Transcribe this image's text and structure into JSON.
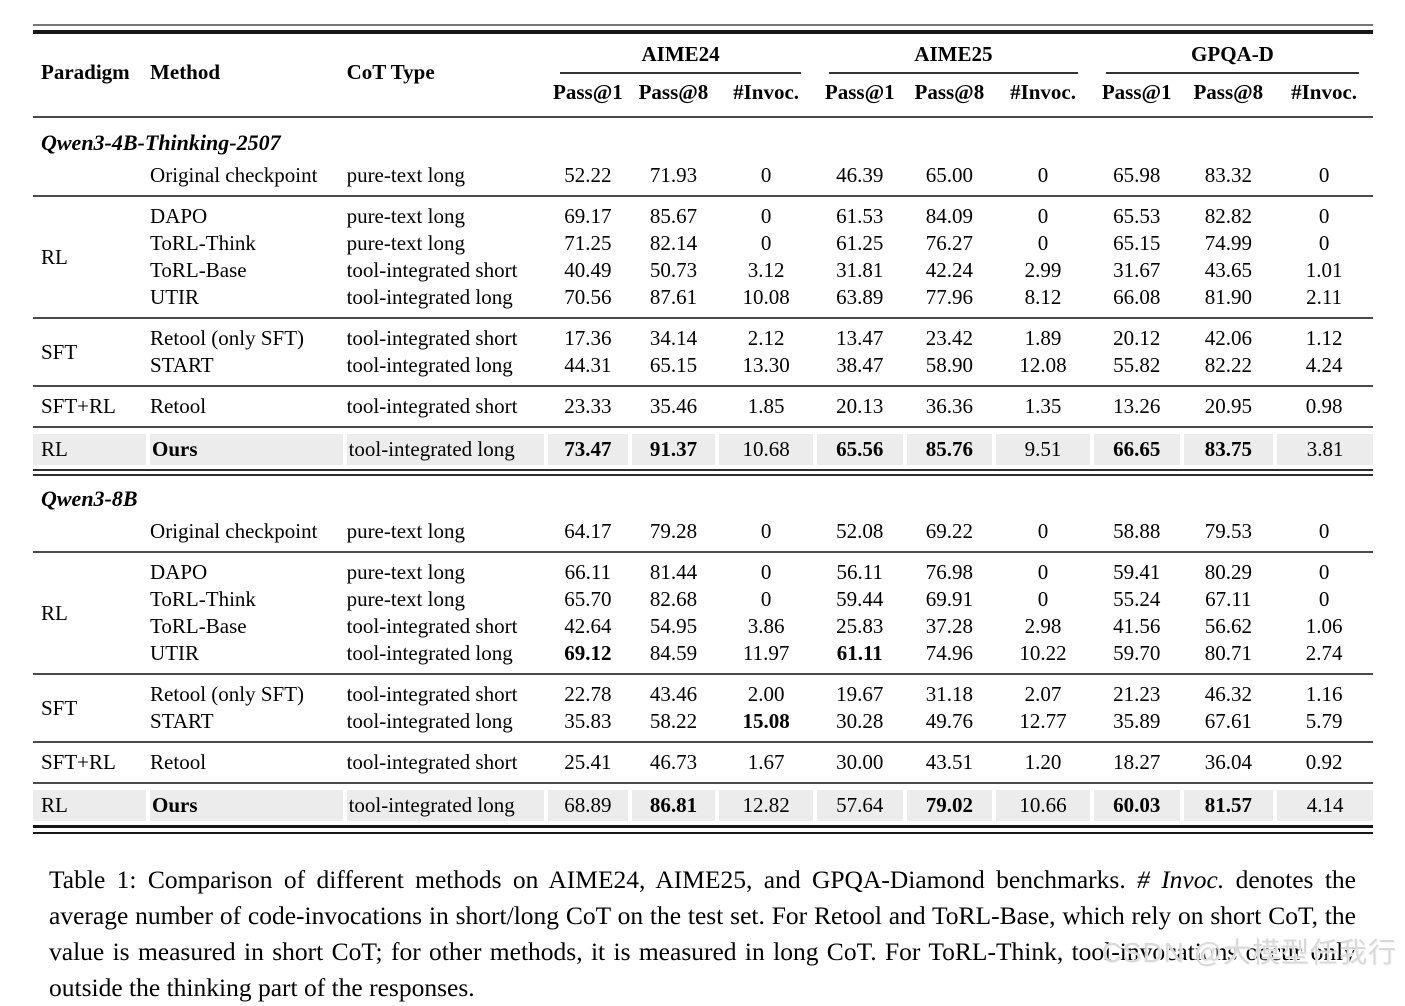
{
  "table": {
    "col_headers": [
      "Paradigm",
      "Method",
      "CoT Type"
    ],
    "groups": [
      "AIME24",
      "AIME25",
      "GPQA-D"
    ],
    "sub_headers": [
      "Pass@1",
      "Pass@8",
      "#Invoc."
    ],
    "sections": [
      {
        "title": "Qwen3-4B-Thinking-2507",
        "blocks": [
          {
            "paradigm": "",
            "highlight": false,
            "rows": [
              {
                "method": "Original checkpoint",
                "cot": "pure-text long",
                "values": [
                  "52.22",
                  "71.93",
                  "0",
                  "46.39",
                  "65.00",
                  "0",
                  "65.98",
                  "83.32",
                  "0"
                ],
                "bold": []
              }
            ]
          },
          {
            "paradigm": "RL",
            "highlight": false,
            "rows": [
              {
                "method": "DAPO",
                "cot": "pure-text long",
                "values": [
                  "69.17",
                  "85.67",
                  "0",
                  "61.53",
                  "84.09",
                  "0",
                  "65.53",
                  "82.82",
                  "0"
                ],
                "bold": []
              },
              {
                "method": "ToRL-Think",
                "cot": "pure-text long",
                "values": [
                  "71.25",
                  "82.14",
                  "0",
                  "61.25",
                  "76.27",
                  "0",
                  "65.15",
                  "74.99",
                  "0"
                ],
                "bold": []
              },
              {
                "method": "ToRL-Base",
                "cot": "tool-integrated short",
                "values": [
                  "40.49",
                  "50.73",
                  "3.12",
                  "31.81",
                  "42.24",
                  "2.99",
                  "31.67",
                  "43.65",
                  "1.01"
                ],
                "bold": []
              },
              {
                "method": "UTIR",
                "cot": "tool-integrated long",
                "values": [
                  "70.56",
                  "87.61",
                  "10.08",
                  "63.89",
                  "77.96",
                  "8.12",
                  "66.08",
                  "81.90",
                  "2.11"
                ],
                "bold": []
              }
            ]
          },
          {
            "paradigm": "SFT",
            "highlight": false,
            "rows": [
              {
                "method": "Retool (only SFT)",
                "cot": "tool-integrated short",
                "values": [
                  "17.36",
                  "34.14",
                  "2.12",
                  "13.47",
                  "23.42",
                  "1.89",
                  "20.12",
                  "42.06",
                  "1.12"
                ],
                "bold": []
              },
              {
                "method": "START",
                "cot": "tool-integrated long",
                "values": [
                  "44.31",
                  "65.15",
                  "13.30",
                  "38.47",
                  "58.90",
                  "12.08",
                  "55.82",
                  "82.22",
                  "4.24"
                ],
                "bold": []
              }
            ]
          },
          {
            "paradigm": "SFT+RL",
            "highlight": false,
            "rows": [
              {
                "method": "Retool",
                "cot": "tool-integrated short",
                "values": [
                  "23.33",
                  "35.46",
                  "1.85",
                  "20.13",
                  "36.36",
                  "1.35",
                  "13.26",
                  "20.95",
                  "0.98"
                ],
                "bold": []
              }
            ]
          },
          {
            "paradigm": "RL",
            "highlight": true,
            "rows": [
              {
                "method": "Ours",
                "cot": "tool-integrated long",
                "values": [
                  "73.47",
                  "91.37",
                  "10.68",
                  "65.56",
                  "85.76",
                  "9.51",
                  "66.65",
                  "83.75",
                  "3.81"
                ],
                "bold": [
                  0,
                  1,
                  3,
                  4,
                  6,
                  7
                ]
              }
            ]
          }
        ]
      },
      {
        "title": "Qwen3-8B",
        "blocks": [
          {
            "paradigm": "",
            "highlight": false,
            "rows": [
              {
                "method": "Original checkpoint",
                "cot": "pure-text long",
                "values": [
                  "64.17",
                  "79.28",
                  "0",
                  "52.08",
                  "69.22",
                  "0",
                  "58.88",
                  "79.53",
                  "0"
                ],
                "bold": []
              }
            ]
          },
          {
            "paradigm": "RL",
            "highlight": false,
            "rows": [
              {
                "method": "DAPO",
                "cot": "pure-text long",
                "values": [
                  "66.11",
                  "81.44",
                  "0",
                  "56.11",
                  "76.98",
                  "0",
                  "59.41",
                  "80.29",
                  "0"
                ],
                "bold": []
              },
              {
                "method": "ToRL-Think",
                "cot": "pure-text long",
                "values": [
                  "65.70",
                  "82.68",
                  "0",
                  "59.44",
                  "69.91",
                  "0",
                  "55.24",
                  "67.11",
                  "0"
                ],
                "bold": []
              },
              {
                "method": "ToRL-Base",
                "cot": "tool-integrated short",
                "values": [
                  "42.64",
                  "54.95",
                  "3.86",
                  "25.83",
                  "37.28",
                  "2.98",
                  "41.56",
                  "56.62",
                  "1.06"
                ],
                "bold": []
              },
              {
                "method": "UTIR",
                "cot": "tool-integrated long",
                "values": [
                  "69.12",
                  "84.59",
                  "11.97",
                  "61.11",
                  "74.96",
                  "10.22",
                  "59.70",
                  "80.71",
                  "2.74"
                ],
                "bold": [
                  0,
                  3
                ]
              }
            ]
          },
          {
            "paradigm": "SFT",
            "highlight": false,
            "rows": [
              {
                "method": "Retool (only SFT)",
                "cot": "tool-integrated short",
                "values": [
                  "22.78",
                  "43.46",
                  "2.00",
                  "19.67",
                  "31.18",
                  "2.07",
                  "21.23",
                  "46.32",
                  "1.16"
                ],
                "bold": []
              },
              {
                "method": "START",
                "cot": "tool-integrated long",
                "values": [
                  "35.83",
                  "58.22",
                  "15.08",
                  "30.28",
                  "49.76",
                  "12.77",
                  "35.89",
                  "67.61",
                  "5.79"
                ],
                "bold": [
                  2
                ]
              }
            ]
          },
          {
            "paradigm": "SFT+RL",
            "highlight": false,
            "rows": [
              {
                "method": "Retool",
                "cot": "tool-integrated short",
                "values": [
                  "25.41",
                  "46.73",
                  "1.67",
                  "30.00",
                  "43.51",
                  "1.20",
                  "18.27",
                  "36.04",
                  "0.92"
                ],
                "bold": []
              }
            ]
          },
          {
            "paradigm": "RL",
            "highlight": true,
            "rows": [
              {
                "method": "Ours",
                "cot": "tool-integrated long",
                "values": [
                  "68.89",
                  "86.81",
                  "12.82",
                  "57.64",
                  "79.02",
                  "10.66",
                  "60.03",
                  "81.57",
                  "4.14"
                ],
                "bold": [
                  1,
                  4,
                  6,
                  7
                ]
              }
            ]
          }
        ]
      }
    ]
  },
  "caption": {
    "parts": [
      {
        "text": "Table 1: Comparison of different methods on AIME24, AIME25, and GPQA-Diamond benchmarks. ",
        "italic": false
      },
      {
        "text": "# Invoc.",
        "italic": true
      },
      {
        "text": " denotes the average number of code-invocations in short/long CoT on the test set. For Retool and ToRL-Base, which rely on short CoT, the value is measured in short CoT; for other methods, it is measured in long CoT. For ToRL-Think, tool-invocations occur only outside the thinking part of the responses.",
        "italic": false
      }
    ]
  },
  "watermark": "CSDN @大模型任我行"
}
